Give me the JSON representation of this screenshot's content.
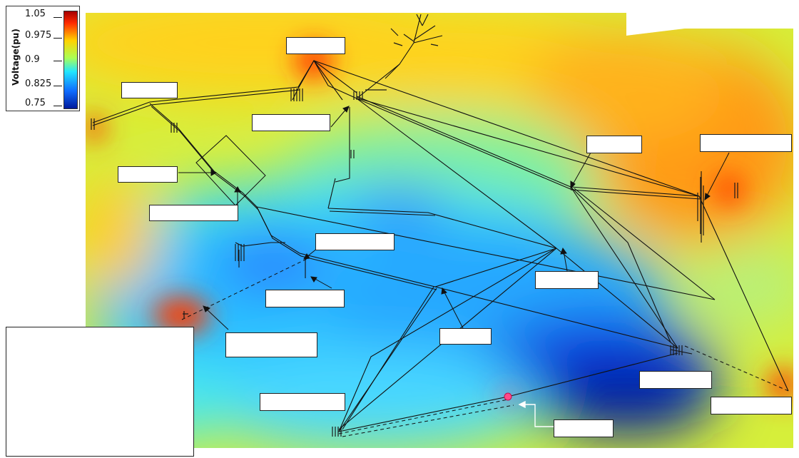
{
  "legend": {
    "title": "Voltage(pu)",
    "ticks": [
      "1.05",
      "0.975",
      "0.9",
      "0.825",
      "0.75"
    ],
    "colors": [
      "#a50000",
      "#ff2a00",
      "#ffd200",
      "#aaff55",
      "#22e6ff",
      "#0f6cff",
      "#001a9c"
    ]
  },
  "map": {
    "background": "#f3f3f3",
    "line_color": "#111111",
    "hot_color": "#ff2a00",
    "cold_color": "#0a36d8"
  }
}
